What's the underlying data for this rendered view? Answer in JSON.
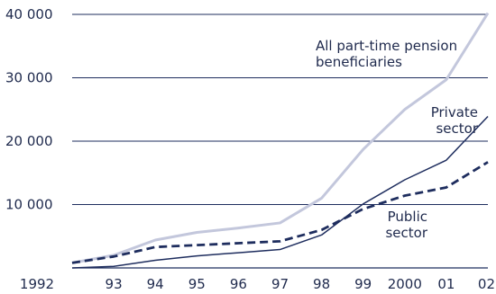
{
  "chart_data": {
    "type": "line",
    "x": [
      "1992",
      "93",
      "94",
      "95",
      "96",
      "97",
      "98",
      "99",
      "2000",
      "01",
      "02"
    ],
    "ylim": [
      0,
      40000
    ],
    "yticks": [
      0,
      10000,
      20000,
      30000,
      40000
    ],
    "ytick_labels": [
      "",
      "10 000",
      "20 000",
      "30 000",
      "40 000"
    ],
    "grid": "horizontal",
    "series": [
      {
        "key": "all",
        "values": [
          800,
          2000,
          4400,
          5600,
          6300,
          7100,
          11000,
          18700,
          25000,
          29700,
          40200
        ],
        "color": "#c3c7dc",
        "style": "solid",
        "label_lines": [
          "All part-time pension",
          "beneficiaries"
        ]
      },
      {
        "key": "private",
        "values": [
          0,
          250,
          1200,
          1900,
          2400,
          2900,
          5200,
          10100,
          13900,
          17000,
          23900
        ],
        "color": "#1e2d5e",
        "style": "solid",
        "label_lines": [
          "Private",
          "sector"
        ]
      },
      {
        "key": "public",
        "values": [
          800,
          1800,
          3300,
          3600,
          3900,
          4200,
          6000,
          9300,
          11400,
          12700,
          16700
        ],
        "color": "#1e2d5e",
        "style": "dashed",
        "label_lines": [
          "Public",
          "sector"
        ]
      }
    ]
  }
}
